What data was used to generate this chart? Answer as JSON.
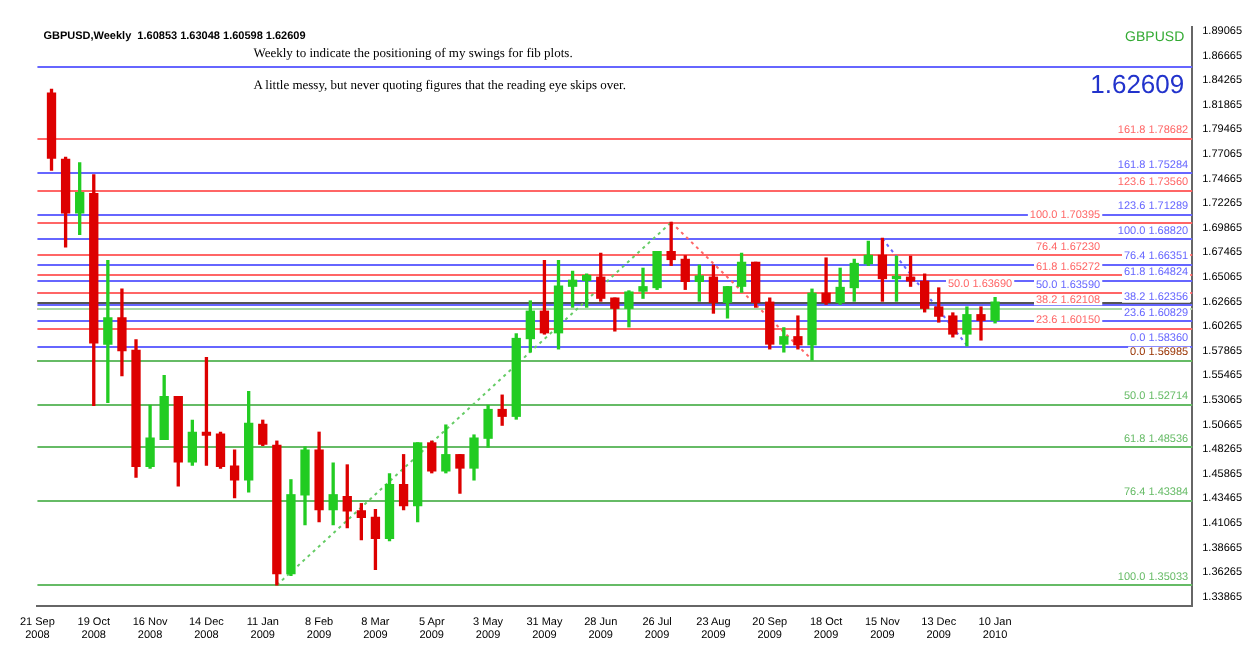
{
  "chart_data": {
    "type": "candlestick",
    "title": "GBPUSD,Weekly  1.60853 1.63048 1.60598 1.62609",
    "annotations": [
      "Weekly to indicate the positioning of my swings for fib plots.",
      "A little messy, but never quoting figures that the reading eye skips over.",
      "GBPUSD",
      "1.62609"
    ],
    "x": [
      "2008-09-28",
      "2008-10-05",
      "2008-10-12",
      "2008-10-19",
      "2008-10-26",
      "2008-11-02",
      "2008-11-09",
      "2008-11-16",
      "2008-11-23",
      "2008-11-30",
      "2008-12-07",
      "2008-12-14",
      "2008-12-21",
      "2008-12-28",
      "2009-01-04",
      "2009-01-11",
      "2009-01-18",
      "2009-01-25",
      "2009-02-01",
      "2009-02-08",
      "2009-02-15",
      "2009-02-22",
      "2009-03-01",
      "2009-03-08",
      "2009-03-15",
      "2009-03-22",
      "2009-03-29",
      "2009-04-05",
      "2009-04-12",
      "2009-04-19",
      "2009-04-26",
      "2009-05-03",
      "2009-05-10",
      "2009-05-17",
      "2009-05-24",
      "2009-05-31",
      "2009-06-07",
      "2009-06-14",
      "2009-06-21",
      "2009-06-28",
      "2009-07-05",
      "2009-07-12",
      "2009-07-19",
      "2009-07-26",
      "2009-08-02",
      "2009-08-09",
      "2009-08-16",
      "2009-08-23",
      "2009-08-30",
      "2009-09-06",
      "2009-09-13",
      "2009-09-20",
      "2009-09-27",
      "2009-10-04",
      "2009-10-11",
      "2009-10-18",
      "2009-10-25",
      "2009-11-01",
      "2009-11-08",
      "2009-11-15",
      "2009-11-22",
      "2009-11-29",
      "2009-12-06",
      "2009-12-13",
      "2009-12-20",
      "2009-12-27",
      "2010-01-03",
      "2010-01-10"
    ],
    "ohlc": [
      [
        1.8301,
        1.8336,
        1.755,
        1.7667
      ],
      [
        1.7655,
        1.7673,
        1.68,
        1.7132
      ],
      [
        1.7132,
        1.762,
        1.6923,
        1.7329
      ],
      [
        1.7319,
        1.7503,
        1.5253,
        1.5864
      ],
      [
        1.5853,
        1.6666,
        1.5283,
        1.6108
      ],
      [
        1.6108,
        1.6387,
        1.5544,
        1.5789
      ],
      [
        1.5789,
        1.5893,
        1.4555,
        1.466
      ],
      [
        1.466,
        1.5253,
        1.4643,
        1.4934
      ],
      [
        1.4922,
        1.5544,
        1.4922,
        1.534
      ],
      [
        1.534,
        1.534,
        1.4468,
        1.4702
      ],
      [
        1.4702,
        1.5108,
        1.4672,
        1.4991
      ],
      [
        1.4991,
        1.5719,
        1.4672,
        1.4964
      ],
      [
        1.4974,
        1.4991,
        1.4643,
        1.466
      ],
      [
        1.466,
        1.4817,
        1.4353,
        1.4527
      ],
      [
        1.4527,
        1.5387,
        1.441,
        1.5079
      ],
      [
        1.5068,
        1.5108,
        1.4864,
        1.4876
      ],
      [
        1.4864,
        1.4904,
        1.35033,
        1.3613
      ],
      [
        1.3613,
        1.4527,
        1.3596,
        1.4381
      ],
      [
        1.4381,
        1.4847,
        1.4091,
        1.4817
      ],
      [
        1.4817,
        1.4991,
        1.4119,
        1.4236
      ],
      [
        1.4236,
        1.469,
        1.4091,
        1.4381
      ],
      [
        1.4363,
        1.4672,
        1.4062,
        1.4224
      ],
      [
        1.4224,
        1.4294,
        1.3945,
        1.4161
      ],
      [
        1.4161,
        1.4236,
        1.3655,
        1.3957
      ],
      [
        1.3957,
        1.4585,
        1.3934,
        1.448
      ],
      [
        1.448,
        1.4772,
        1.4236,
        1.4276
      ],
      [
        1.4276,
        1.4887,
        1.4119,
        1.4887
      ],
      [
        1.4887,
        1.4904,
        1.4597,
        1.4615
      ],
      [
        1.4615,
        1.5061,
        1.4597,
        1.4772
      ],
      [
        1.4772,
        1.4772,
        1.4398,
        1.4643
      ],
      [
        1.4643,
        1.4964,
        1.4527,
        1.4934
      ],
      [
        1.4934,
        1.5253,
        1.4847,
        1.5213
      ],
      [
        1.5213,
        1.5353,
        1.5061,
        1.5148
      ],
      [
        1.5148,
        1.5951,
        1.5121,
        1.5906
      ],
      [
        1.5906,
        1.6272,
        1.5776,
        1.6172
      ],
      [
        1.6172,
        1.6666,
        1.5951,
        1.5963
      ],
      [
        1.5963,
        1.6666,
        1.5806,
        1.6417
      ],
      [
        1.6417,
        1.6561,
        1.6213,
        1.6474
      ],
      [
        1.6474,
        1.6534,
        1.6213,
        1.6521
      ],
      [
        1.6504,
        1.6736,
        1.6272,
        1.63
      ],
      [
        1.63,
        1.63,
        1.5981,
        1.6202
      ],
      [
        1.6202,
        1.637,
        1.6021,
        1.6359
      ],
      [
        1.637,
        1.6591,
        1.63,
        1.6411
      ],
      [
        1.6404,
        1.6753,
        1.6387,
        1.6753
      ],
      [
        1.6753,
        1.70395,
        1.6621,
        1.6678
      ],
      [
        1.6678,
        1.6713,
        1.6387,
        1.6464
      ],
      [
        1.6464,
        1.6621,
        1.6272,
        1.6516
      ],
      [
        1.6504,
        1.6621,
        1.6155,
        1.626
      ],
      [
        1.626,
        1.6411,
        1.6108,
        1.6411
      ],
      [
        1.6417,
        1.6736,
        1.6359,
        1.6649
      ],
      [
        1.6649,
        1.6649,
        1.6213,
        1.626
      ],
      [
        1.626,
        1.63,
        1.5806,
        1.5853
      ],
      [
        1.5853,
        1.601,
        1.5776,
        1.5923
      ],
      [
        1.5923,
        1.6125,
        1.5806,
        1.5846
      ],
      [
        1.5846,
        1.6387,
        1.56985,
        1.6347
      ],
      [
        1.6347,
        1.6691,
        1.6242,
        1.626
      ],
      [
        1.626,
        1.6591,
        1.6242,
        1.6404
      ],
      [
        1.6404,
        1.6678,
        1.6272,
        1.6638
      ],
      [
        1.6638,
        1.6853,
        1.6621,
        1.6718
      ],
      [
        1.6718,
        1.6882,
        1.6272,
        1.6492
      ],
      [
        1.6492,
        1.6708,
        1.6272,
        1.6504
      ],
      [
        1.6504,
        1.6708,
        1.6417,
        1.6469
      ],
      [
        1.6464,
        1.6534,
        1.6167,
        1.6202
      ],
      [
        1.6213,
        1.6399,
        1.6068,
        1.6125
      ],
      [
        1.6125,
        1.6155,
        1.5923,
        1.5951
      ],
      [
        1.5951,
        1.6213,
        1.5836,
        1.6138
      ],
      [
        1.6138,
        1.6213,
        1.5893,
        1.6085
      ],
      [
        1.60853,
        1.63048,
        1.60598,
        1.62609
      ]
    ],
    "colors": [
      "#dd0000",
      "#dd0000",
      "#22cc22",
      "#dd0000",
      "#22cc22",
      "#dd0000",
      "#dd0000",
      "#22cc22",
      "#22cc22",
      "#dd0000",
      "#22cc22",
      "#dd0000",
      "#dd0000",
      "#dd0000",
      "#22cc22",
      "#dd0000",
      "#dd0000",
      "#22cc22",
      "#22cc22",
      "#dd0000",
      "#22cc22",
      "#dd0000",
      "#dd0000",
      "#dd0000",
      "#22cc22",
      "#dd0000",
      "#22cc22",
      "#dd0000",
      "#22cc22",
      "#dd0000",
      "#22cc22",
      "#22cc22",
      "#dd0000",
      "#22cc22",
      "#22cc22",
      "#dd0000",
      "#22cc22",
      "#22cc22",
      "#22cc22",
      "#dd0000",
      "#dd0000",
      "#22cc22",
      "#22cc22",
      "#22cc22",
      "#dd0000",
      "#dd0000",
      "#22cc22",
      "#dd0000",
      "#22cc22",
      "#22cc22",
      "#dd0000",
      "#dd0000",
      "#22cc22",
      "#dd0000",
      "#22cc22",
      "#dd0000",
      "#22cc22",
      "#22cc22",
      "#22cc22",
      "#dd0000",
      "#22cc22",
      "#dd0000",
      "#dd0000",
      "#dd0000",
      "#dd0000",
      "#22cc22",
      "#dd0000",
      "#22cc22"
    ],
    "series": [
      {
        "type": "line",
        "x": [
          "2009-01-18",
          "2009-08-02"
        ],
        "values": [
          1.35,
          1.704
        ],
        "color": "#66cc66",
        "line_style": "dotted"
      },
      {
        "type": "line",
        "x": [
          "2009-08-02",
          "2009-10-11"
        ],
        "values": [
          1.704,
          1.57
        ],
        "color": "#ff6666",
        "line_style": "dotted"
      },
      {
        "type": "line",
        "x": [
          "2009-11-15",
          "2009-12-27"
        ],
        "values": [
          1.688,
          1.584
        ],
        "color": "#6666ff",
        "line_style": "dotted"
      }
    ],
    "ref_lines": [
      {
        "axis": "y",
        "value": 1.62609,
        "color": "#555555"
      },
      {
        "axis": "y",
        "value": 1.85744,
        "color": "#6666ff"
      },
      {
        "axis": "y",
        "value": 1.75284,
        "label": "161.8 1.75284",
        "color": "#6666ff"
      },
      {
        "axis": "y",
        "value": 1.71289,
        "label": "123.6 1.71289",
        "color": "#6666ff"
      },
      {
        "axis": "y",
        "value": 1.6882,
        "label": "100.0 1.68820",
        "color": "#6666ff"
      },
      {
        "axis": "y",
        "value": 1.66351,
        "label": "76.4 1.66351",
        "color": "#6666ff"
      },
      {
        "axis": "y",
        "value": 1.64824,
        "label": "61.8 1.64824",
        "color": "#6666ff"
      },
      {
        "axis": "y",
        "value": 1.6359,
        "label": "50.0 1.63590",
        "color": "#6666ff"
      },
      {
        "axis": "y",
        "value": 1.62356,
        "label": "38.2 1.62356",
        "color": "#6666ff"
      },
      {
        "axis": "y",
        "value": 1.60829,
        "label": "23.6 1.60829",
        "color": "#6666ff"
      },
      {
        "axis": "y",
        "value": 1.5836,
        "label": "0.0 1.58360",
        "color": "#6666ff"
      },
      {
        "axis": "y",
        "value": 1.78682,
        "label": "161.8 1.78682",
        "color": "#ff6666"
      },
      {
        "axis": "y",
        "value": 1.7356,
        "label": "123.6 1.73560",
        "color": "#ff6666"
      },
      {
        "axis": "y",
        "value": 1.70395,
        "label": "100.0 1.70395",
        "color": "#ff6666"
      },
      {
        "axis": "y",
        "value": 1.6723,
        "label": "76.4 1.67230",
        "color": "#ff6666"
      },
      {
        "axis": "y",
        "value": 1.65272,
        "label": "61.8 1.65272",
        "color": "#ff6666"
      },
      {
        "axis": "y",
        "value": 1.6369,
        "label": "50.0 1.63690",
        "color": "#ff6666"
      },
      {
        "axis": "y",
        "value": 1.62108,
        "label": "38.2 1.62108",
        "color": "#ff6666"
      },
      {
        "axis": "y",
        "value": 1.6015,
        "label": "23.6 1.60150",
        "color": "#ff6666"
      },
      {
        "axis": "y",
        "value": 1.56985,
        "label": "0.0 1.56985",
        "color": "#993300"
      },
      {
        "axis": "y",
        "value": 1.6205,
        "color": "#a8d8a8"
      },
      {
        "axis": "y",
        "value": 1.56887,
        "color": "#66bb66"
      },
      {
        "axis": "y",
        "value": 1.52714,
        "label": "50.0 1.52714",
        "color": "#66bb66"
      },
      {
        "axis": "y",
        "value": 1.48536,
        "label": "61.8 1.48536",
        "color": "#66bb66"
      },
      {
        "axis": "y",
        "value": 1.43384,
        "label": "76.4 1.43384",
        "color": "#66bb66"
      },
      {
        "axis": "y",
        "value": 1.35033,
        "label": "100.0 1.35033",
        "color": "#66bb66"
      }
    ],
    "xlim": [
      "2008-09-21",
      "2010-04-18"
    ],
    "xticks": [
      {
        "value": "2008-09-21",
        "label": "21 Sep 2008"
      },
      {
        "value": "2008-10-19",
        "label": "19 Oct 2008"
      },
      {
        "value": "2008-11-16",
        "label": "16 Nov 2008"
      },
      {
        "value": "2008-12-14",
        "label": "14 Dec 2008"
      },
      {
        "value": "2009-01-11",
        "label": "11 Jan 2009"
      },
      {
        "value": "2009-02-08",
        "label": "8 Feb 2009"
      },
      {
        "value": "2009-03-08",
        "label": "8 Mar 2009"
      },
      {
        "value": "2009-04-05",
        "label": "5 Apr 2009"
      },
      {
        "value": "2009-05-03",
        "label": "3 May 2009"
      },
      {
        "value": "2009-05-31",
        "label": "31 May 2009"
      },
      {
        "value": "2009-06-28",
        "label": "28 Jun 2009"
      },
      {
        "value": "2009-07-26",
        "label": "26 Jul 2009"
      },
      {
        "value": "2009-08-23",
        "label": "23 Aug 2009"
      },
      {
        "value": "2009-09-20",
        "label": "20 Sep 2009"
      },
      {
        "value": "2009-10-18",
        "label": "18 Oct 2009"
      },
      {
        "value": "2009-11-15",
        "label": "15 Nov 2009"
      },
      {
        "value": "2009-12-13",
        "label": "13 Dec 2009"
      },
      {
        "value": "2010-01-10",
        "label": "10 Jan 2010"
      }
    ],
    "ylim": [
      1.33,
      1.895
    ],
    "yticks": [
      1.33865,
      1.36265,
      1.38665,
      1.41065,
      1.43465,
      1.45865,
      1.48265,
      1.50665,
      1.53065,
      1.55465,
      1.57865,
      1.60265,
      1.62665,
      1.65065,
      1.67465,
      1.69865,
      1.72265,
      1.74665,
      1.77065,
      1.79465,
      1.81865,
      1.84265,
      1.86665,
      1.89065
    ]
  }
}
